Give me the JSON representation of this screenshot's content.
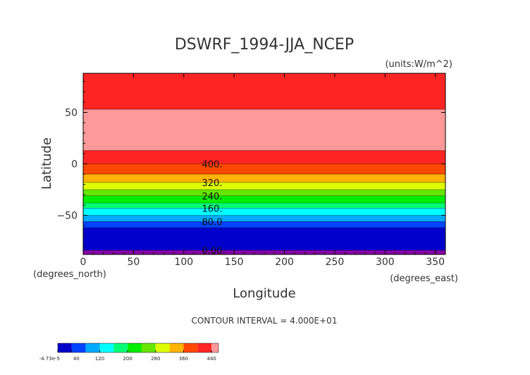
{
  "chart_data": {
    "type": "heatmap",
    "title": "DSWRF_1994-JJA_NCEP",
    "units": "(units:W/m^2)",
    "xlabel": "Longitude",
    "ylabel": "Latitude",
    "x_unit_label": "(degrees_east)",
    "y_unit_label": "(degrees_north)",
    "xlim": [
      0,
      360
    ],
    "ylim": [
      -88,
      88
    ],
    "x_ticks": [
      0,
      50,
      100,
      150,
      200,
      250,
      300,
      350
    ],
    "y_ticks": [
      50,
      0,
      -50
    ],
    "contour_interval_text": "CONTOUR INTERVAL = 4.000E+01",
    "bands": [
      {
        "lat_top": 88,
        "lat_bottom": 53,
        "range": "400-440",
        "color": "#ff2424"
      },
      {
        "lat_top": 53,
        "lat_bottom": 13,
        "range": ">440",
        "color": "#ff9999"
      },
      {
        "lat_top": 13,
        "lat_bottom": 0,
        "range": "400-440",
        "color": "#ff2424"
      },
      {
        "lat_top": 0,
        "lat_bottom": -10,
        "range": "360-400",
        "color": "#ff4800"
      },
      {
        "lat_top": -10,
        "lat_bottom": -18,
        "range": "320-360",
        "color": "#ffb400"
      },
      {
        "lat_top": -18,
        "lat_bottom": -25,
        "range": "280-320",
        "color": "#ddff00"
      },
      {
        "lat_top": -25,
        "lat_bottom": -31,
        "range": "240-280",
        "color": "#66e600"
      },
      {
        "lat_top": -31,
        "lat_bottom": -38,
        "range": "200-240",
        "color": "#00ee00"
      },
      {
        "lat_top": -38,
        "lat_bottom": -43,
        "range": "160-200",
        "color": "#00ff77"
      },
      {
        "lat_top": -43,
        "lat_bottom": -50,
        "range": "120-160",
        "color": "#00ffff"
      },
      {
        "lat_top": -50,
        "lat_bottom": -56,
        "range": "80-120",
        "color": "#00aaff"
      },
      {
        "lat_top": -56,
        "lat_bottom": -62,
        "range": "40-80",
        "color": "#0044ff"
      },
      {
        "lat_top": -62,
        "lat_bottom": -84,
        "range": "0-40",
        "color": "#0000cc"
      },
      {
        "lat_top": -84,
        "lat_bottom": -88,
        "range": "<0",
        "color": "#8800aa"
      }
    ],
    "contour_labels": [
      {
        "text": "400.",
        "lat": 0
      },
      {
        "text": "320.",
        "lat": -18
      },
      {
        "text": "240.",
        "lat": -31
      },
      {
        "text": "160.",
        "lat": -43
      },
      {
        "text": "80.0",
        "lat": -56
      },
      {
        "text": "0.00",
        "lat": -84
      }
    ],
    "colorbar": {
      "colors": [
        "#0000cc",
        "#0044ff",
        "#00aaff",
        "#00ffff",
        "#00ff77",
        "#00ee00",
        "#66e600",
        "#ddff00",
        "#ffb400",
        "#ff4800",
        "#ff2424",
        "#ff9999"
      ],
      "labels": [
        "-4.73e-5",
        "40",
        "120",
        "200",
        "280",
        "360",
        "440"
      ],
      "label_positions": [
        0,
        1,
        3,
        5,
        7,
        9,
        11
      ]
    }
  }
}
